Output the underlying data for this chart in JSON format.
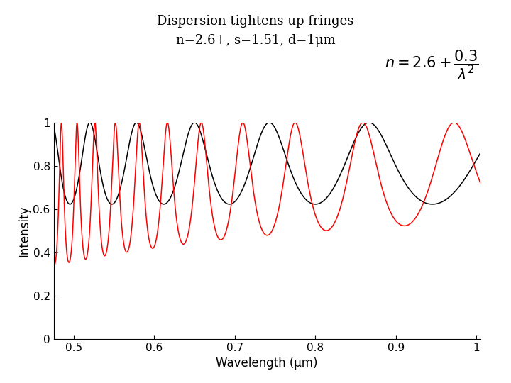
{
  "title_line1": "Dispersion tightens up fringes",
  "title_line2": "n=2.6+, s=1.51, d=1μm",
  "xlabel": "Wavelength (μm)",
  "ylabel": "Intensity",
  "xlim": [
    0.475,
    1.005
  ],
  "ylim": [
    0,
    1.0
  ],
  "xticks": [
    0.5,
    0.6,
    0.7,
    0.8,
    0.9,
    1.0
  ],
  "yticks": [
    0,
    0.2,
    0.4,
    0.6,
    0.8,
    1.0
  ],
  "n_film_const": 1.51,
  "n_substrate": 1.51,
  "n_base": 2.6,
  "n_coeff": 0.3,
  "d_um": 1.0,
  "lambda_min": 0.47,
  "lambda_max": 1.01,
  "n_points": 10000,
  "color_constant": "black",
  "color_dispersive": "red",
  "annotation": "$n = 2.6 + \\dfrac{0.3}{\\lambda^2}$",
  "bg_color": "#ffffff",
  "fig_bg": "#ffffff"
}
